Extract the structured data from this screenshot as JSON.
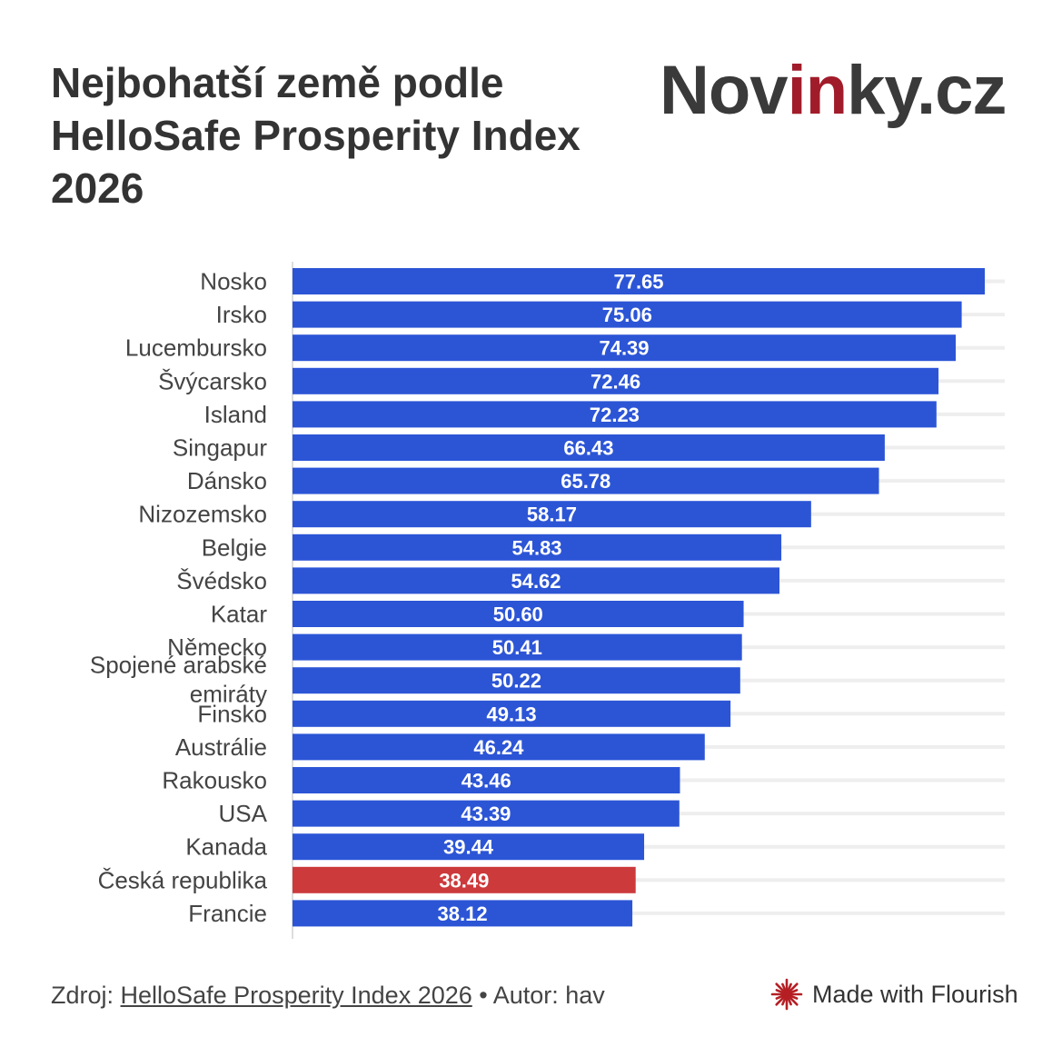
{
  "title": "Nejbohatší země podle HelloSafe Prosperity Index 2026",
  "logo": {
    "part1": "Nov",
    "part2": "in",
    "part3": "ky.cz"
  },
  "chart_data": {
    "type": "bar",
    "orientation": "horizontal",
    "categories": [
      "Nosko",
      "Irsko",
      "Lucembursko",
      "Švýcarsko",
      "Island",
      "Singapur",
      "Dánsko",
      "Nizozemsko",
      "Belgie",
      "Švédsko",
      "Katar",
      "Německo",
      "Spojené arabské emiráty",
      "Finsko",
      "Austrálie",
      "Rakousko",
      "USA",
      "Kanada",
      "Česká republika",
      "Francie"
    ],
    "values": [
      77.65,
      75.06,
      74.39,
      72.46,
      72.23,
      66.43,
      65.78,
      58.17,
      54.83,
      54.62,
      50.6,
      50.41,
      50.22,
      49.13,
      46.24,
      43.46,
      43.39,
      39.44,
      38.49,
      38.12
    ],
    "value_labels": [
      "77.65",
      "75.06",
      "74.39",
      "72.46",
      "72.23",
      "66.43",
      "65.78",
      "58.17",
      "54.83",
      "54.62",
      "50.60",
      "50.41",
      "50.22",
      "49.13",
      "46.24",
      "43.46",
      "43.39",
      "39.44",
      "38.49",
      "38.12"
    ],
    "highlight": "Česká republika",
    "colors": {
      "bar": "#2c55d6",
      "highlight": "#cc3a3c",
      "grid": "#eeeeee",
      "label": "#ffffff"
    },
    "xlim": [
      0,
      80
    ],
    "grid": true
  },
  "footer": {
    "source_prefix": "Zdroj: ",
    "source_link": "HelloSafe Prosperity Index 2026",
    "separator": " • ",
    "author": "Autor: hav"
  },
  "flourish": {
    "label": "Made with Flourish",
    "icon": "flourish-logo-icon",
    "color": "#b51f24"
  }
}
